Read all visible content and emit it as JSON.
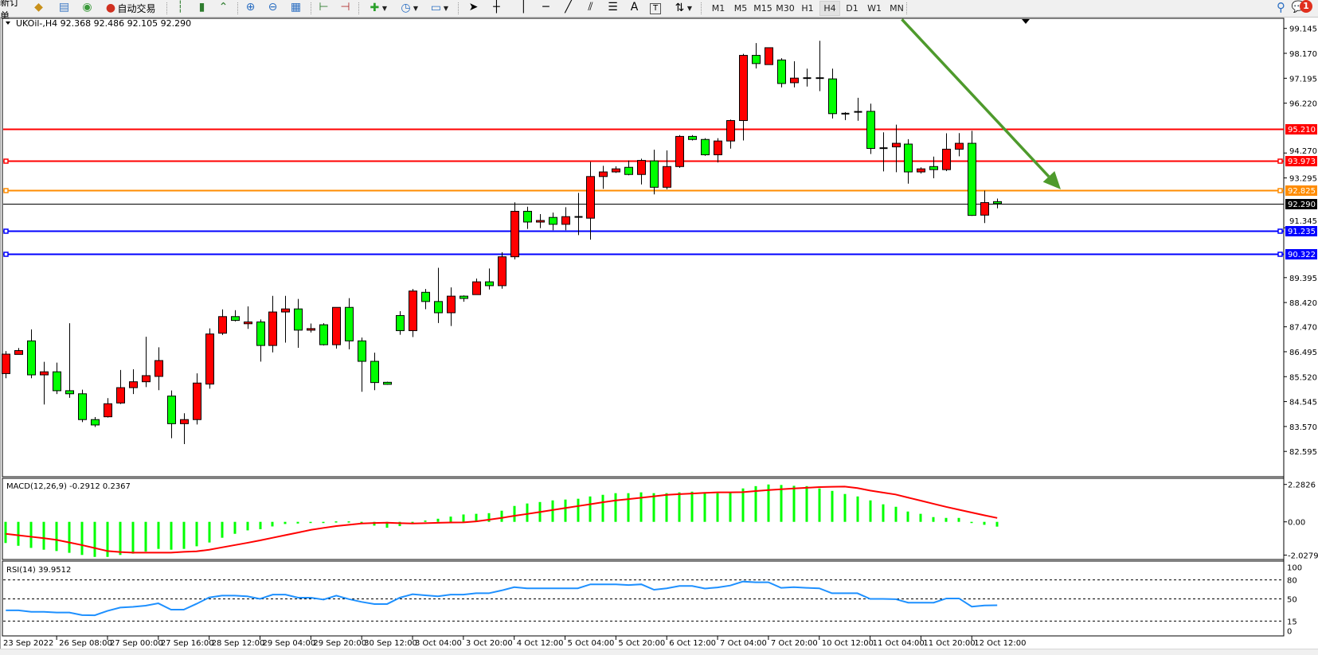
{
  "toolbar": {
    "new_order_label": "新订单",
    "auto_trading_label": "自动交易",
    "icons": [
      "market-watch-icon",
      "data-window-icon",
      "navigator-icon",
      "auto-trading-icon",
      "bar-chart-icon",
      "candlestick-icon",
      "line-chart-icon",
      "zoom-in-icon",
      "zoom-out-icon",
      "tile-windows-icon",
      "auto-scroll-icon",
      "chart-shift-icon",
      "indicators-icon",
      "periodicity-icon",
      "templates-icon",
      "cursor-icon",
      "crosshair-icon",
      "vertical-line-icon",
      "horizontal-line-icon",
      "trendline-icon",
      "equidistant-channel-icon",
      "fibonacci-icon",
      "text-icon",
      "text-label-icon",
      "arrows-icon",
      "search-icon",
      "notifications-icon"
    ],
    "timeframes": [
      "M1",
      "M5",
      "M15",
      "M30",
      "H1",
      "H4",
      "D1",
      "W1",
      "MN"
    ],
    "active_timeframe": "H4",
    "text_tool_label": "A",
    "notification_count": "1"
  },
  "colors": {
    "bull_candle": "#ff0000",
    "bear_candle": "#00ff00",
    "macd_histogram": "#00ff00",
    "macd_signal": "#ff0000",
    "rsi_line": "#1e90ff",
    "trend_arrow": "#4e9a2c"
  },
  "chart_data": [
    {
      "type": "candlestick",
      "legend": "UKOil-,H4  92.368 92.486 92.105 92.290",
      "symbol": "UKOil-",
      "timeframe": "H4",
      "last": {
        "open": 92.368,
        "high": 92.486,
        "low": 92.105,
        "close": 92.29
      },
      "ylim": [
        82.595,
        99.145
      ],
      "y_ticks": [
        "99.145",
        "98.170",
        "97.195",
        "96.220",
        "94.270",
        "93.295",
        "91.345",
        "89.395",
        "88.420",
        "87.470",
        "86.495",
        "85.520",
        "84.545",
        "83.570",
        "82.595"
      ],
      "x_labels": [
        {
          "index": 0,
          "label": "23 Sep 2022"
        },
        {
          "index": 4,
          "label": "26 Sep 08:00"
        },
        {
          "index": 8,
          "label": "27 Sep 00:00"
        },
        {
          "index": 12,
          "label": "27 Sep 16:00"
        },
        {
          "index": 16,
          "label": "28 Sep 12:00"
        },
        {
          "index": 20,
          "label": "29 Sep 04:00"
        },
        {
          "index": 24,
          "label": "29 Sep 20:00"
        },
        {
          "index": 28,
          "label": "30 Sep 12:00"
        },
        {
          "index": 32,
          "label": "3 Oct 04:00"
        },
        {
          "index": 36,
          "label": "3 Oct 20:00"
        },
        {
          "index": 40,
          "label": "4 Oct 12:00"
        },
        {
          "index": 44,
          "label": "5 Oct 04:00"
        },
        {
          "index": 48,
          "label": "5 Oct 20:00"
        },
        {
          "index": 52,
          "label": "6 Oct 12:00"
        },
        {
          "index": 56,
          "label": "7 Oct 04:00"
        },
        {
          "index": 60,
          "label": "7 Oct 20:00"
        },
        {
          "index": 64,
          "label": "10 Oct 12:00"
        },
        {
          "index": 68,
          "label": "11 Oct 04:00"
        },
        {
          "index": 72,
          "label": "11 Oct 20:00"
        },
        {
          "index": 76,
          "label": "12 Oct 12:00"
        }
      ],
      "price_lines": [
        {
          "price": 95.21,
          "label": "95.210",
          "color": "#ff0000",
          "handles": false
        },
        {
          "price": 93.973,
          "label": "93.973",
          "color": "#ff0000",
          "handles": true
        },
        {
          "price": 92.825,
          "label": "92.825",
          "color": "#ff8c00",
          "handles": true
        },
        {
          "price": 92.29,
          "label": "92.290",
          "color": "#000000",
          "handles": false,
          "bid": true
        },
        {
          "price": 91.235,
          "label": "91.235",
          "color": "#0000ff",
          "handles": true
        },
        {
          "price": 90.322,
          "label": "90.322",
          "color": "#0000ff",
          "handles": true
        }
      ],
      "trend_arrow": {
        "from": {
          "index": 70.5,
          "price": 99.5
        },
        "to": {
          "index": 83,
          "price": 92.85
        }
      },
      "candles_ohlc": [
        [
          85.64,
          86.52,
          85.46,
          86.4
        ],
        [
          86.39,
          86.64,
          86.39,
          86.54
        ],
        [
          86.92,
          87.37,
          85.46,
          85.59
        ],
        [
          85.59,
          86.1,
          84.43,
          85.71
        ],
        [
          85.71,
          86.07,
          84.84,
          84.97
        ],
        [
          84.97,
          87.61,
          84.69,
          84.85
        ],
        [
          84.85,
          85.01,
          83.74,
          83.84
        ],
        [
          83.84,
          83.94,
          83.55,
          83.63
        ],
        [
          83.95,
          84.68,
          83.92,
          84.46
        ],
        [
          84.49,
          85.78,
          84.45,
          85.09
        ],
        [
          85.09,
          85.81,
          84.84,
          85.32
        ],
        [
          85.32,
          87.08,
          85.11,
          85.56
        ],
        [
          85.53,
          86.67,
          84.99,
          86.15
        ],
        [
          84.76,
          84.98,
          83.11,
          83.68
        ],
        [
          83.68,
          84.09,
          82.88,
          83.84
        ],
        [
          83.84,
          85.65,
          83.65,
          85.27
        ],
        [
          85.23,
          87.41,
          85.05,
          87.19
        ],
        [
          87.22,
          88.15,
          87.15,
          87.87
        ],
        [
          87.87,
          88.12,
          87.68,
          87.72
        ],
        [
          87.59,
          88.27,
          87.39,
          87.66
        ],
        [
          87.66,
          87.76,
          86.11,
          86.74
        ],
        [
          86.74,
          88.68,
          86.47,
          88.05
        ],
        [
          88.05,
          88.68,
          86.85,
          88.17
        ],
        [
          88.17,
          88.56,
          86.65,
          87.34
        ],
        [
          87.34,
          87.6,
          87.25,
          87.4
        ],
        [
          87.55,
          87.61,
          86.74,
          86.77
        ],
        [
          86.77,
          88.23,
          86.62,
          88.23
        ],
        [
          88.23,
          88.59,
          86.59,
          86.92
        ],
        [
          86.92,
          87.05,
          84.93,
          86.12
        ],
        [
          86.12,
          86.46,
          84.99,
          85.29
        ],
        [
          85.3,
          85.32,
          85.2,
          85.22
        ],
        [
          87.91,
          88.08,
          87.16,
          87.32
        ],
        [
          87.32,
          88.95,
          87.07,
          88.87
        ],
        [
          88.82,
          88.95,
          88.16,
          88.46
        ],
        [
          88.46,
          89.78,
          87.62,
          88.02
        ],
        [
          88.02,
          89.01,
          87.5,
          88.67
        ],
        [
          88.67,
          88.7,
          88.45,
          88.58
        ],
        [
          88.73,
          89.36,
          88.73,
          89.23
        ],
        [
          89.23,
          89.75,
          88.93,
          89.08
        ],
        [
          89.08,
          90.39,
          88.96,
          90.21
        ],
        [
          90.21,
          92.34,
          90.11,
          91.99
        ],
        [
          91.99,
          92.17,
          91.3,
          91.57
        ],
        [
          91.57,
          91.88,
          91.33,
          91.63
        ],
        [
          91.75,
          91.94,
          91.25,
          91.48
        ],
        [
          91.48,
          92.15,
          91.25,
          91.78
        ],
        [
          91.77,
          92.71,
          91.06,
          91.77
        ],
        [
          91.72,
          93.92,
          90.88,
          93.35
        ],
        [
          93.35,
          93.77,
          92.87,
          93.53
        ],
        [
          93.53,
          93.75,
          93.49,
          93.65
        ],
        [
          93.71,
          93.98,
          93.4,
          93.43
        ],
        [
          93.43,
          94.05,
          93.04,
          93.98
        ],
        [
          93.96,
          94.4,
          92.65,
          92.93
        ],
        [
          92.93,
          94.37,
          92.85,
          93.74
        ],
        [
          93.74,
          94.97,
          93.69,
          94.92
        ],
        [
          94.92,
          94.97,
          94.76,
          94.8
        ],
        [
          94.8,
          94.85,
          94.16,
          94.2
        ],
        [
          94.2,
          94.85,
          93.9,
          94.74
        ],
        [
          94.74,
          95.58,
          94.44,
          95.54
        ],
        [
          95.54,
          98.15,
          94.76,
          98.09
        ],
        [
          98.09,
          98.57,
          97.58,
          97.77
        ],
        [
          97.73,
          98.39,
          97.73,
          98.39
        ],
        [
          97.91,
          97.98,
          96.84,
          96.99
        ],
        [
          97.02,
          97.86,
          96.84,
          97.2
        ],
        [
          97.2,
          97.57,
          96.87,
          97.2
        ],
        [
          97.2,
          98.66,
          96.69,
          97.2
        ],
        [
          97.17,
          97.57,
          95.62,
          95.81
        ],
        [
          95.81,
          95.87,
          95.56,
          95.81
        ],
        [
          95.88,
          96.43,
          95.53,
          95.88
        ],
        [
          95.9,
          96.2,
          94.23,
          94.45
        ],
        [
          94.46,
          95.08,
          93.55,
          94.46
        ],
        [
          94.51,
          95.38,
          93.52,
          94.65
        ],
        [
          94.62,
          94.81,
          93.07,
          93.53
        ],
        [
          93.53,
          93.71,
          93.47,
          93.65
        ],
        [
          93.74,
          94.13,
          93.28,
          93.62
        ],
        [
          93.62,
          95.04,
          93.56,
          94.42
        ],
        [
          94.42,
          95.05,
          94.14,
          94.65
        ],
        [
          94.65,
          95.14,
          91.81,
          91.83
        ],
        [
          91.84,
          92.8,
          91.53,
          92.33
        ],
        [
          92.368,
          92.486,
          92.105,
          92.29
        ]
      ]
    },
    {
      "type": "bar",
      "legend": "MACD(12,26,9) -0.2912 0.2367",
      "y_ticks": [
        "2.2826",
        "0.00",
        "-2.0279"
      ],
      "ylim": [
        -2.0279,
        2.2826
      ],
      "series": [
        {
          "name": "MACD",
          "kind": "histogram",
          "values": [
            -1.29,
            -1.46,
            -1.59,
            -1.7,
            -1.78,
            -1.89,
            -2.02,
            -2.14,
            -2.14,
            -2.02,
            -1.94,
            -1.81,
            -1.65,
            -1.7,
            -1.65,
            -1.49,
            -1.26,
            -0.97,
            -0.73,
            -0.52,
            -0.45,
            -0.28,
            -0.13,
            -0.1,
            -0.05,
            -0.03,
            0.03,
            0.03,
            -0.1,
            -0.23,
            -0.36,
            -0.26,
            -0.05,
            0.08,
            0.19,
            0.32,
            0.45,
            0.49,
            0.53,
            0.68,
            0.97,
            1.12,
            1.21,
            1.31,
            1.36,
            1.41,
            1.55,
            1.65,
            1.75,
            1.75,
            1.8,
            1.75,
            1.75,
            1.8,
            1.84,
            1.75,
            1.75,
            1.8,
            2.04,
            2.18,
            2.28,
            2.25,
            2.2,
            2.18,
            2.04,
            1.89,
            1.7,
            1.55,
            1.31,
            1.07,
            0.92,
            0.63,
            0.49,
            0.29,
            0.24,
            0.24,
            -0.06,
            -0.18,
            -0.2912
          ]
        },
        {
          "name": "Signal",
          "kind": "line",
          "values": [
            -0.73,
            -0.82,
            -0.91,
            -1.0,
            -1.1,
            -1.26,
            -1.42,
            -1.6,
            -1.78,
            -1.84,
            -1.88,
            -1.88,
            -1.88,
            -1.88,
            -1.83,
            -1.8,
            -1.7,
            -1.56,
            -1.42,
            -1.28,
            -1.13,
            -0.97,
            -0.81,
            -0.65,
            -0.49,
            -0.37,
            -0.26,
            -0.18,
            -0.1,
            -0.07,
            -0.05,
            -0.08,
            -0.1,
            -0.08,
            -0.06,
            -0.04,
            -0.03,
            0.03,
            0.13,
            0.24,
            0.37,
            0.48,
            0.6,
            0.72,
            0.84,
            0.96,
            1.08,
            1.2,
            1.31,
            1.39,
            1.47,
            1.56,
            1.65,
            1.69,
            1.73,
            1.77,
            1.8,
            1.8,
            1.81,
            1.88,
            1.94,
            1.99,
            2.04,
            2.08,
            2.12,
            2.14,
            2.15,
            2.06,
            1.91,
            1.79,
            1.67,
            1.48,
            1.29,
            1.1,
            0.91,
            0.74,
            0.57,
            0.4,
            0.2367
          ]
        }
      ]
    },
    {
      "type": "line",
      "legend": "RSI(14) 39.9512",
      "y_ticks": [
        "100",
        "80",
        "50",
        "15",
        "0"
      ],
      "levels": [
        80,
        50,
        15
      ],
      "ylim": [
        0,
        100
      ],
      "values": [
        31.9,
        32.0,
        29.6,
        29.6,
        28.5,
        28.5,
        24.4,
        24.1,
        31.1,
        36.3,
        37.4,
        39.3,
        43.0,
        33.0,
        33.0,
        42.2,
        52.2,
        55.2,
        55.2,
        54.1,
        50.0,
        56.7,
        56.7,
        51.9,
        51.9,
        48.9,
        55.2,
        49.6,
        45.2,
        41.9,
        41.9,
        51.9,
        57.4,
        55.6,
        54.1,
        56.7,
        56.7,
        58.9,
        58.9,
        63.3,
        68.5,
        66.7,
        66.7,
        66.7,
        66.7,
        66.7,
        73.0,
        73.0,
        73.0,
        71.9,
        73.0,
        64.4,
        66.7,
        70.4,
        70.4,
        66.3,
        68.1,
        71.1,
        77.4,
        76.3,
        76.3,
        67.4,
        68.5,
        67.4,
        66.7,
        58.9,
        58.9,
        58.9,
        50.0,
        50.0,
        49.6,
        44.1,
        44.1,
        44.1,
        50.7,
        50.7,
        37.8,
        39.6,
        39.9512
      ]
    }
  ]
}
